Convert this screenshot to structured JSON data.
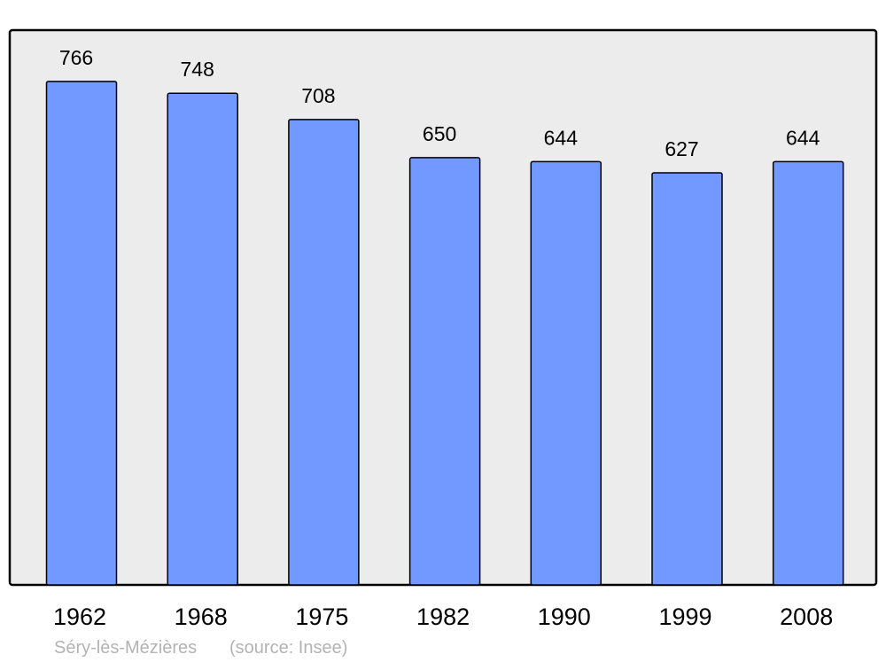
{
  "chart_data": {
    "type": "bar",
    "categories": [
      "1962",
      "1968",
      "1975",
      "1982",
      "1990",
      "1999",
      "2008"
    ],
    "values": [
      766,
      748,
      708,
      650,
      644,
      627,
      644
    ],
    "title": "",
    "xlabel": "",
    "ylabel": "",
    "ylim": [
      0,
      844
    ],
    "grid": false,
    "data_labels": true,
    "colors": {
      "bar": "#7299ff",
      "plot_background": "#ececec",
      "border": "#000000",
      "footer_text": "#b3b3b3"
    }
  },
  "footer": {
    "place": "Séry-lès-Mézières",
    "source": "(source: Insee)"
  }
}
